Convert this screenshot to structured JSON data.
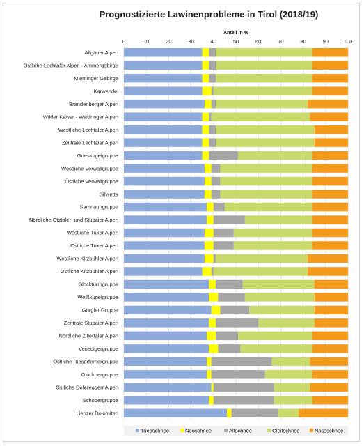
{
  "chart_data": {
    "type": "bar",
    "orientation": "horizontal",
    "stacked": true,
    "percent": true,
    "title": "Prognostizierte Lawinenprobleme in Tirol (2018/19)",
    "xlabel": "Anteil in %",
    "ylabel": "",
    "xlim": [
      0,
      100
    ],
    "xticks": [
      0,
      10,
      20,
      30,
      40,
      50,
      60,
      70,
      80,
      90,
      100
    ],
    "grid": true,
    "legend_position": "bottom",
    "categories": [
      "Allgäuer Alpen",
      "Östliche Lechtaler Alpen - Ammergebirge",
      "Mieminger Gebirge",
      "Karwendel",
      "Brandenberger Alpen",
      "Wilder Kaiser - Waidringer Alpen",
      "Westliche Lechtaler Alpen",
      "Zentrale Lechtaler Alpen",
      "Grieskogelgruppe",
      "Westliche Verwallgruppe",
      "Östliche Verwallgruppe",
      "Silvretta",
      "Samnaungruppe",
      "Nördliche Ötztaler- und Stubaier Alpen",
      "Westliche Tuxer Alpen",
      "Östliche Tuxer Alpen",
      "Westliche Kitzbühler Alpen",
      "Östliche Kitzbühler Alpen",
      "Glockturmgruppe",
      "Weißkugelgruppe",
      "Gurgler Gruppe",
      "Zentrale Stubaier Alpen",
      "Nördliche Zillertaler Alpen",
      "Venedigergruppe",
      "Östliche Rieserfernergruppe",
      "Glocknergruppe",
      "Östliche Defereggerr Alpen",
      "Schobergruppe",
      "Lienzer Dolomiten"
    ],
    "series": [
      {
        "name": "Triebschnee",
        "color": "#8eaadb",
        "values": [
          35,
          35,
          35,
          35,
          36,
          35,
          35,
          35,
          35,
          36,
          36,
          36,
          37,
          37,
          36,
          36,
          36,
          35,
          38,
          38,
          39,
          38,
          37,
          38,
          37,
          37,
          39,
          38,
          46
        ]
      },
      {
        "name": "Neuschnee",
        "color": "#ffff00",
        "values": [
          3,
          3,
          3,
          4,
          3,
          3,
          3,
          3,
          3,
          3,
          3,
          3,
          3,
          3,
          4,
          4,
          4,
          4,
          3,
          4,
          4,
          3,
          4,
          4,
          2,
          2,
          1,
          2,
          2
        ]
      },
      {
        "name": "Altschnee",
        "color": "#a6a6a6",
        "values": [
          3,
          3,
          3,
          1,
          2,
          1,
          3,
          3,
          13,
          4,
          4,
          4,
          5,
          14,
          9,
          9,
          1,
          1,
          12,
          12,
          13,
          19,
          10,
          10,
          27,
          24,
          27,
          27,
          21
        ]
      },
      {
        "name": "Gleitschnee",
        "color": "#c9d96b",
        "values": [
          43,
          43,
          43,
          44,
          41,
          44,
          44,
          44,
          33,
          41,
          41,
          41,
          39,
          30,
          35,
          35,
          41,
          42,
          32,
          31,
          29,
          25,
          33,
          32,
          17,
          21,
          16,
          17,
          9
        ]
      },
      {
        "name": "Nassschnee",
        "color": "#f39a1d",
        "values": [
          16,
          16,
          16,
          16,
          18,
          17,
          15,
          15,
          16,
          16,
          16,
          16,
          16,
          16,
          16,
          16,
          18,
          18,
          15,
          15,
          15,
          15,
          16,
          16,
          17,
          16,
          17,
          16,
          22
        ]
      }
    ]
  }
}
